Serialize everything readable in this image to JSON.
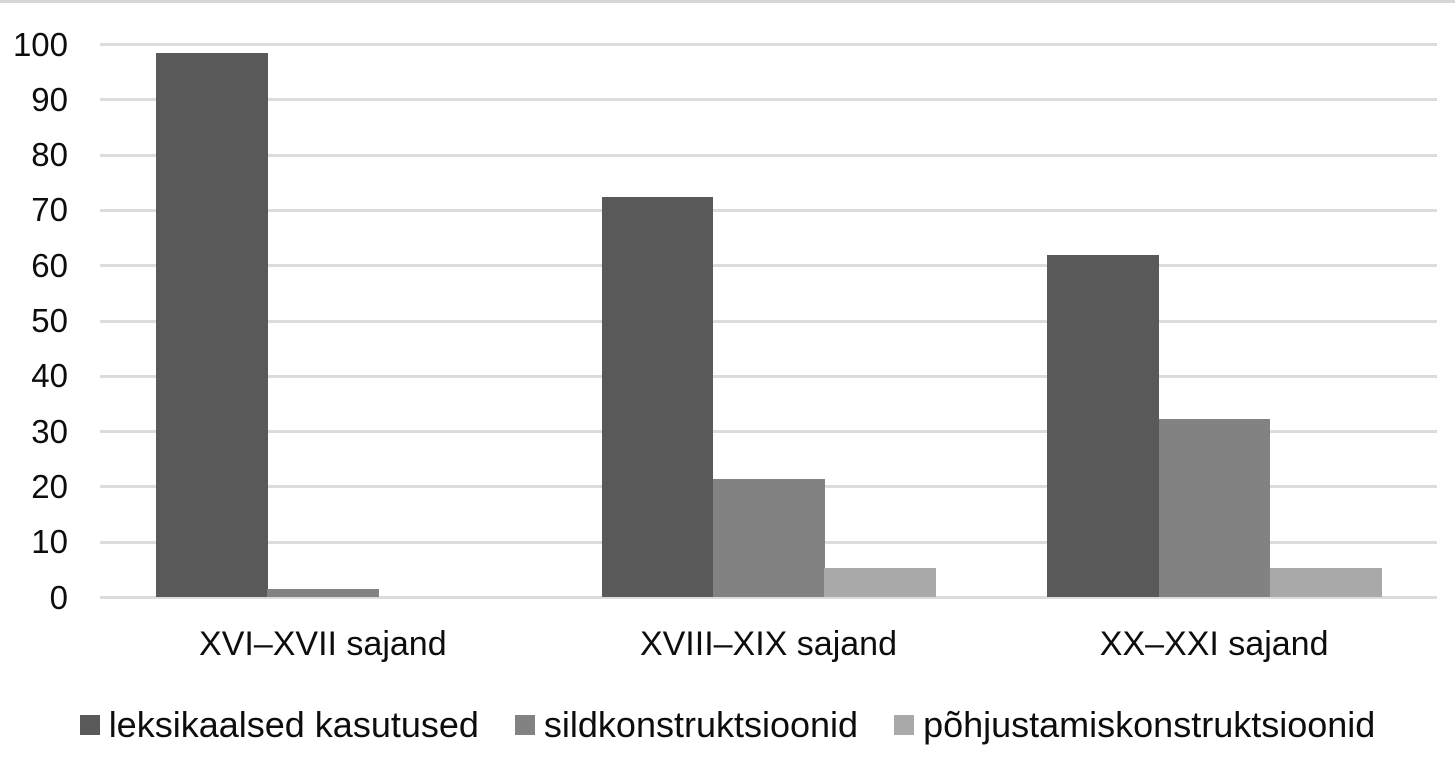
{
  "chart_data": {
    "type": "bar",
    "title": "",
    "xlabel": "",
    "ylabel": "",
    "categories": [
      "XVI–XVII sajand",
      "XVIII–XIX sajand",
      "XX–XXI sajand"
    ],
    "series": [
      {
        "name": "leksikaalsed kasutused",
        "color": "#595959",
        "values": [
          98.5,
          72.5,
          62.0
        ]
      },
      {
        "name": "sildkonstruktsioonid",
        "color": "#828282",
        "values": [
          1.5,
          21.5,
          32.3
        ]
      },
      {
        "name": "põhjustamiskonstruktsioonid",
        "color": "#a9a9a9",
        "values": [
          0,
          5.4,
          5.4
        ]
      }
    ],
    "ylim": [
      0,
      100
    ],
    "yticks": [
      0,
      10,
      20,
      30,
      40,
      50,
      60,
      70,
      80,
      90,
      100
    ],
    "grid": true,
    "gridline_color": "#dcdcdc",
    "legend_position": "bottom",
    "background": "#ffffff",
    "top_border_color": "#d6d6d6"
  }
}
